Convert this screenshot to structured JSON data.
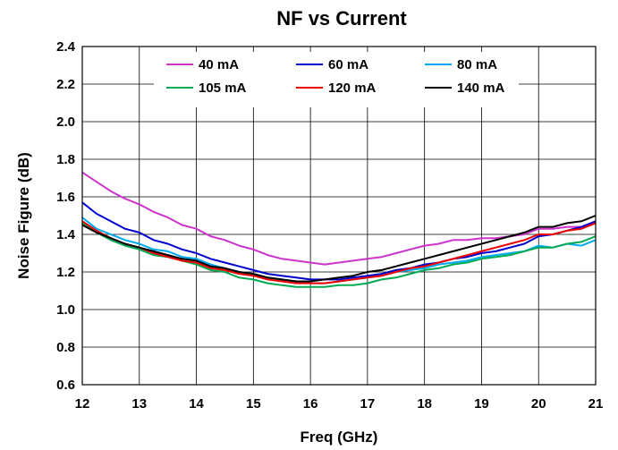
{
  "chart_data": {
    "type": "line",
    "title": "NF vs Current",
    "xlabel": "Freq (GHz)",
    "ylabel": "Noise Figure (dB)",
    "xlim": [
      12,
      21
    ],
    "ylim": [
      0.6,
      2.4
    ],
    "xticks": [
      "12",
      "13",
      "14",
      "15",
      "16",
      "17",
      "18",
      "19",
      "20",
      "21"
    ],
    "yticks": [
      "0.6",
      "0.8",
      "1.0",
      "1.2",
      "1.4",
      "1.6",
      "1.8",
      "2.0",
      "2.2",
      "2.4"
    ],
    "grid": true,
    "legend_position": "top",
    "x": [
      12.0,
      12.25,
      12.5,
      12.75,
      13.0,
      13.25,
      13.5,
      13.75,
      14.0,
      14.25,
      14.5,
      14.75,
      15.0,
      15.25,
      15.5,
      15.75,
      16.0,
      16.25,
      16.5,
      16.75,
      17.0,
      17.25,
      17.5,
      17.75,
      18.0,
      18.25,
      18.5,
      18.75,
      19.0,
      19.25,
      19.5,
      19.75,
      20.0,
      20.25,
      20.5,
      20.75,
      21.0
    ],
    "series": [
      {
        "name": "40 mA",
        "color": "#CC33CC",
        "values": [
          1.73,
          1.68,
          1.63,
          1.59,
          1.56,
          1.52,
          1.49,
          1.45,
          1.43,
          1.39,
          1.37,
          1.34,
          1.32,
          1.29,
          1.27,
          1.26,
          1.25,
          1.24,
          1.25,
          1.26,
          1.27,
          1.28,
          1.3,
          1.32,
          1.34,
          1.35,
          1.37,
          1.37,
          1.38,
          1.38,
          1.39,
          1.4,
          1.43,
          1.43,
          1.44,
          1.44,
          1.46
        ]
      },
      {
        "name": "60 mA",
        "color": "#0000CC",
        "values": [
          1.57,
          1.51,
          1.47,
          1.43,
          1.41,
          1.37,
          1.35,
          1.32,
          1.3,
          1.27,
          1.25,
          1.23,
          1.21,
          1.19,
          1.18,
          1.17,
          1.16,
          1.16,
          1.16,
          1.17,
          1.18,
          1.19,
          1.21,
          1.22,
          1.24,
          1.25,
          1.27,
          1.28,
          1.3,
          1.31,
          1.33,
          1.35,
          1.39,
          1.4,
          1.42,
          1.44,
          1.47
        ]
      },
      {
        "name": "80 mA",
        "color": "#00AAEE",
        "values": [
          1.49,
          1.43,
          1.4,
          1.37,
          1.35,
          1.32,
          1.31,
          1.28,
          1.27,
          1.24,
          1.22,
          1.2,
          1.19,
          1.17,
          1.16,
          1.15,
          1.14,
          1.14,
          1.15,
          1.16,
          1.17,
          1.18,
          1.2,
          1.21,
          1.22,
          1.24,
          1.25,
          1.26,
          1.28,
          1.29,
          1.3,
          1.31,
          1.34,
          1.33,
          1.35,
          1.34,
          1.37
        ]
      },
      {
        "name": "105 mA",
        "color": "#00AA55",
        "values": [
          1.46,
          1.41,
          1.37,
          1.34,
          1.32,
          1.29,
          1.28,
          1.26,
          1.24,
          1.21,
          1.2,
          1.17,
          1.16,
          1.14,
          1.13,
          1.12,
          1.12,
          1.12,
          1.13,
          1.13,
          1.14,
          1.16,
          1.17,
          1.19,
          1.21,
          1.22,
          1.24,
          1.25,
          1.27,
          1.28,
          1.29,
          1.31,
          1.33,
          1.33,
          1.35,
          1.36,
          1.39
        ]
      },
      {
        "name": "120 mA",
        "color": "#EE0000",
        "values": [
          1.47,
          1.42,
          1.38,
          1.35,
          1.33,
          1.3,
          1.28,
          1.26,
          1.25,
          1.22,
          1.21,
          1.19,
          1.18,
          1.16,
          1.15,
          1.14,
          1.14,
          1.14,
          1.15,
          1.16,
          1.17,
          1.18,
          1.2,
          1.22,
          1.23,
          1.25,
          1.27,
          1.29,
          1.31,
          1.33,
          1.35,
          1.37,
          1.4,
          1.4,
          1.42,
          1.43,
          1.46
        ]
      },
      {
        "name": "140 mA",
        "color": "#000000",
        "values": [
          1.45,
          1.41,
          1.38,
          1.35,
          1.33,
          1.31,
          1.29,
          1.27,
          1.26,
          1.23,
          1.22,
          1.2,
          1.19,
          1.17,
          1.16,
          1.15,
          1.15,
          1.16,
          1.17,
          1.18,
          1.2,
          1.21,
          1.23,
          1.25,
          1.27,
          1.29,
          1.31,
          1.33,
          1.35,
          1.37,
          1.39,
          1.41,
          1.44,
          1.44,
          1.46,
          1.47,
          1.5
        ]
      }
    ]
  }
}
